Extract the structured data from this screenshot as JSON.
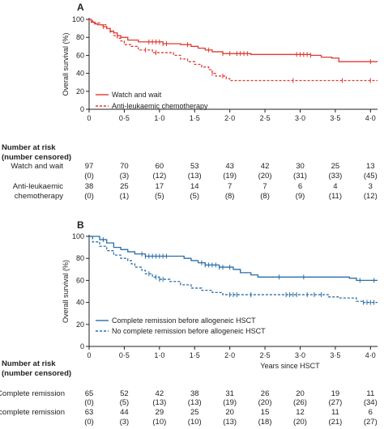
{
  "chart_data": [
    {
      "panel": "A",
      "type": "line",
      "title": "",
      "ylabel": "Overall survival (%)",
      "xlabel": "",
      "xlim": [
        0,
        4.1
      ],
      "ylim": [
        0,
        100
      ],
      "xticks": [
        "0",
        "0·5",
        "1·0",
        "1·5",
        "2·0",
        "2·5",
        "3·0",
        "3·5",
        "4·0"
      ],
      "yticks": [
        "0",
        "20",
        "40",
        "60",
        "80",
        "100"
      ],
      "legend_position": "bottom-left",
      "series": [
        {
          "name": "Watch and wait",
          "color": "#e03a32",
          "dash": false,
          "steps": [
            [
              0,
              100
            ],
            [
              0.03,
              97
            ],
            [
              0.08,
              95
            ],
            [
              0.12,
              94
            ],
            [
              0.2,
              92
            ],
            [
              0.25,
              90
            ],
            [
              0.3,
              87
            ],
            [
              0.35,
              85
            ],
            [
              0.4,
              82
            ],
            [
              0.45,
              80
            ],
            [
              0.55,
              77
            ],
            [
              0.7,
              75
            ],
            [
              1.05,
              73
            ],
            [
              1.3,
              72
            ],
            [
              1.45,
              70
            ],
            [
              1.55,
              68
            ],
            [
              1.65,
              66
            ],
            [
              1.75,
              64
            ],
            [
              1.9,
              62
            ],
            [
              2.3,
              61
            ],
            [
              3.15,
              60
            ],
            [
              3.3,
              58
            ],
            [
              3.45,
              57
            ],
            [
              3.55,
              53
            ],
            [
              4.1,
              53
            ]
          ],
          "censor_x": [
            0.2,
            0.85,
            0.9,
            0.95,
            1.0,
            1.05,
            1.1,
            1.4,
            1.7,
            1.9,
            2.0,
            2.1,
            2.15,
            2.2,
            2.25,
            2.95,
            3.0,
            3.05,
            3.1,
            3.15,
            4.0
          ]
        },
        {
          "name": "Anti-leukaemic chemotherapy",
          "color": "#e03a32",
          "dash": true,
          "steps": [
            [
              0,
              100
            ],
            [
              0.05,
              96
            ],
            [
              0.15,
              94
            ],
            [
              0.25,
              90
            ],
            [
              0.3,
              86
            ],
            [
              0.35,
              82
            ],
            [
              0.4,
              79
            ],
            [
              0.45,
              76
            ],
            [
              0.5,
              72
            ],
            [
              0.6,
              70
            ],
            [
              0.7,
              66
            ],
            [
              0.9,
              63
            ],
            [
              1.2,
              60
            ],
            [
              1.3,
              56
            ],
            [
              1.4,
              53
            ],
            [
              1.5,
              50
            ],
            [
              1.6,
              47
            ],
            [
              1.7,
              44
            ],
            [
              1.75,
              40
            ],
            [
              1.8,
              37
            ],
            [
              1.95,
              34
            ],
            [
              2.0,
              32
            ],
            [
              4.1,
              32
            ]
          ],
          "censor_x": [
            0.8,
            0.95,
            1.75,
            1.9,
            2.9,
            3.6,
            4.0
          ]
        }
      ],
      "risk_table": {
        "header": [
          "Number at risk",
          "(number censored)"
        ],
        "rows": [
          {
            "label": "Watch and wait",
            "at_risk": [
              "97",
              "70",
              "60",
              "53",
              "43",
              "42",
              "30",
              "25",
              "13"
            ],
            "censored": [
              "(0)",
              "(3)",
              "(12)",
              "(13)",
              "(19)",
              "(20)",
              "(31)",
              "(33)",
              "(45)"
            ]
          },
          {
            "label_line1": "Anti-leukaemic",
            "label_line2": "chemotherapy",
            "at_risk": [
              "38",
              "25",
              "17",
              "14",
              "7",
              "7",
              "6",
              "4",
              "3"
            ],
            "censored": [
              "(0)",
              "(1)",
              "(5)",
              "(5)",
              "(8)",
              "(8)",
              "(9)",
              "(11)",
              "(12)"
            ]
          }
        ]
      }
    },
    {
      "panel": "B",
      "type": "line",
      "title": "",
      "ylabel": "Overall survival (%)",
      "xlabel": "Years since HSCT",
      "xlim": [
        0,
        4.1
      ],
      "ylim": [
        0,
        100
      ],
      "xticks": [
        "0",
        "0·5",
        "1·0",
        "1·5",
        "2·0",
        "2·5",
        "3·0",
        "3·5",
        "4·0"
      ],
      "yticks": [
        "0",
        "20",
        "40",
        "60",
        "80",
        "100"
      ],
      "legend_position": "bottom-left",
      "series": [
        {
          "name": "Complete remission before allogeneic HSCT",
          "color": "#2b6ea8",
          "dash": false,
          "steps": [
            [
              0,
              100
            ],
            [
              0.15,
              97
            ],
            [
              0.25,
              94
            ],
            [
              0.35,
              90
            ],
            [
              0.45,
              88
            ],
            [
              0.55,
              86
            ],
            [
              0.65,
              84
            ],
            [
              0.8,
              82
            ],
            [
              1.35,
              80
            ],
            [
              1.45,
              78
            ],
            [
              1.55,
              76
            ],
            [
              1.65,
              74
            ],
            [
              1.85,
              72
            ],
            [
              2.05,
              70
            ],
            [
              2.15,
              67
            ],
            [
              2.3,
              65
            ],
            [
              2.4,
              63
            ],
            [
              3.7,
              62
            ],
            [
              3.8,
              60
            ],
            [
              4.1,
              60
            ]
          ],
          "censor_x": [
            0.2,
            0.75,
            0.8,
            0.85,
            0.9,
            0.95,
            1.0,
            1.05,
            1.1,
            1.6,
            1.65,
            1.7,
            1.75,
            1.8,
            1.85,
            1.9,
            2.0,
            2.7,
            3.05,
            3.85,
            4.05
          ]
        },
        {
          "name": "No complete remission before allogeneic HSCT",
          "color": "#2b6ea8",
          "dash": true,
          "steps": [
            [
              0,
              100
            ],
            [
              0.05,
              95
            ],
            [
              0.15,
              91
            ],
            [
              0.25,
              87
            ],
            [
              0.35,
              83
            ],
            [
              0.45,
              80
            ],
            [
              0.55,
              78
            ],
            [
              0.6,
              75
            ],
            [
              0.65,
              72
            ],
            [
              0.75,
              69
            ],
            [
              0.8,
              66
            ],
            [
              0.9,
              63
            ],
            [
              1.0,
              61
            ],
            [
              1.15,
              59
            ],
            [
              1.3,
              56
            ],
            [
              1.45,
              53
            ],
            [
              1.6,
              51
            ],
            [
              1.75,
              49
            ],
            [
              1.9,
              47
            ],
            [
              3.4,
              45
            ],
            [
              3.55,
              44
            ],
            [
              3.8,
              41
            ],
            [
              3.9,
              40
            ],
            [
              4.1,
              40
            ]
          ],
          "censor_x": [
            0.85,
            0.95,
            1.0,
            1.05,
            2.0,
            2.05,
            2.1,
            2.3,
            2.8,
            2.85,
            2.9,
            2.95,
            3.1,
            3.2,
            3.3,
            3.9,
            3.95,
            4.0,
            4.05
          ]
        }
      ],
      "risk_table": {
        "header": [
          "Number at risk",
          "(number censored)"
        ],
        "rows": [
          {
            "label": "Complete remission",
            "at_risk": [
              "65",
              "52",
              "42",
              "38",
              "31",
              "26",
              "20",
              "19",
              "11"
            ],
            "censored": [
              "(0)",
              "(5)",
              "(13)",
              "(13)",
              "(19)",
              "(20)",
              "(26)",
              "(27)",
              "(34)"
            ]
          },
          {
            "label": "No complete remission",
            "at_risk": [
              "63",
              "44",
              "29",
              "25",
              "20",
              "15",
              "12",
              "11",
              "6"
            ],
            "censored": [
              "(0)",
              "(3)",
              "(10)",
              "(10)",
              "(13)",
              "(18)",
              "(20)",
              "(21)",
              "(27)"
            ]
          }
        ]
      }
    }
  ]
}
